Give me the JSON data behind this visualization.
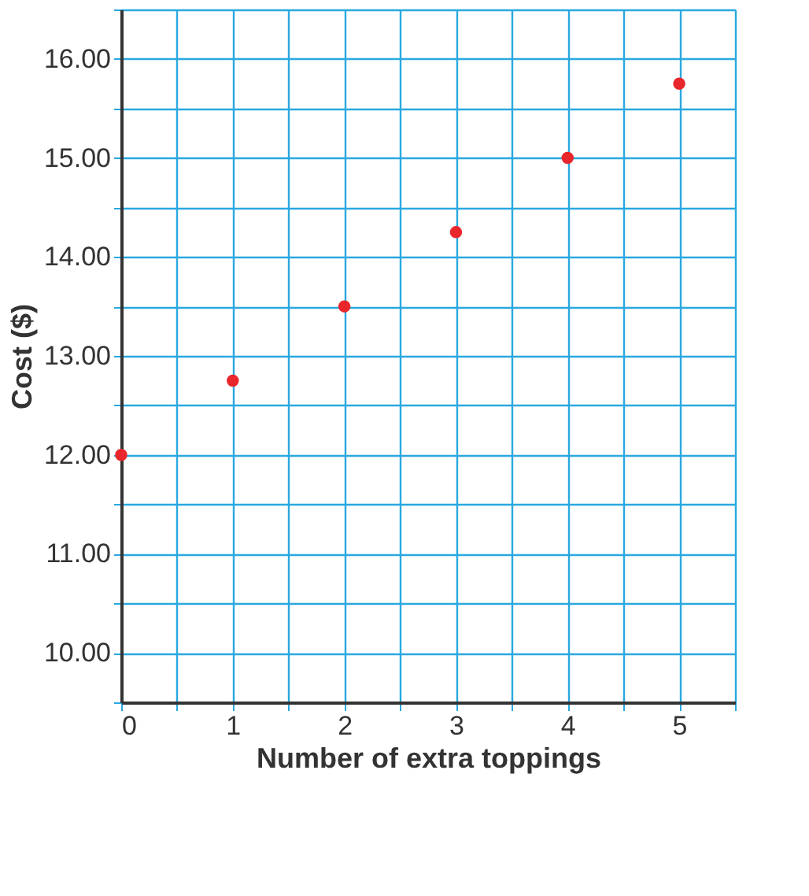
{
  "chart_data": {
    "type": "scatter",
    "xlabel": "Number of extra toppings",
    "ylabel": "Cost ($)",
    "x": [
      0,
      1,
      2,
      3,
      4,
      5
    ],
    "series": [
      {
        "color": "#e8262b",
        "values": [
          12.0,
          12.75,
          13.5,
          14.25,
          15.0,
          15.75
        ]
      }
    ],
    "xlim": [
      0,
      5.5
    ],
    "ylim": [
      9.5,
      16.5
    ],
    "xticks": [
      0,
      {
        "value": 0.5,
        "label": null
      },
      1,
      {
        "value": 1.5,
        "label": null
      },
      2,
      {
        "value": 2.5,
        "label": null
      },
      3,
      {
        "value": 3.5,
        "label": null
      },
      4,
      {
        "value": 4.5,
        "label": null
      },
      5,
      {
        "value": 5.5,
        "label": null
      }
    ],
    "yticks": [
      {
        "value": 9.5,
        "label": null
      },
      {
        "value": 10,
        "label": "10.00"
      },
      {
        "value": 10.5,
        "label": null
      },
      {
        "value": 11,
        "label": "11.00"
      },
      {
        "value": 11.5,
        "label": null
      },
      {
        "value": 12,
        "label": "12.00"
      },
      {
        "value": 12.5,
        "label": null
      },
      {
        "value": 13,
        "label": "13.00"
      },
      {
        "value": 13.5,
        "label": null
      },
      {
        "value": 14,
        "label": "14.00"
      },
      {
        "value": 14.5,
        "label": null
      },
      {
        "value": 15,
        "label": "15.00"
      },
      {
        "value": 15.5,
        "label": null
      },
      {
        "value": 16,
        "label": "16.00"
      },
      {
        "value": 16.5,
        "label": null
      }
    ],
    "grid": true,
    "marker": "circle"
  }
}
